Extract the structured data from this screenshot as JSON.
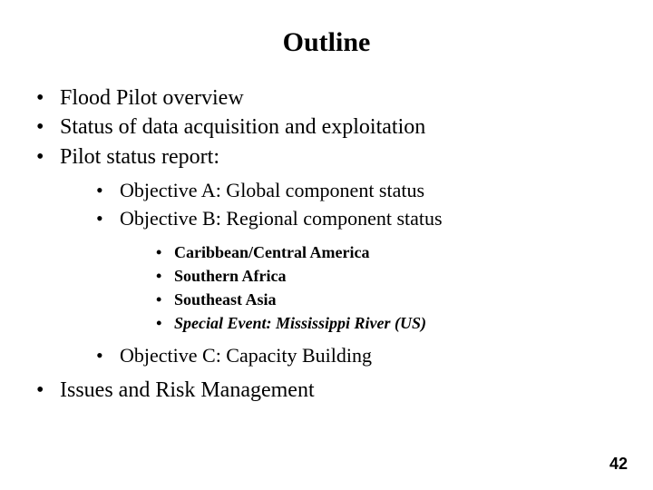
{
  "title": "Outline",
  "items": {
    "l1_0": "Flood Pilot overview",
    "l1_1": "Status of data acquisition and exploitation",
    "l1_2": "Pilot status report:",
    "l2_0": "Objective A: Global component status",
    "l2_1": "Objective B: Regional component status",
    "l3_0": "Caribbean/Central America",
    "l3_1": "Southern Africa",
    "l3_2": "Southeast Asia",
    "l3_3": "Special Event: Mississippi River (US)",
    "l2_2": "Objective C: Capacity Building",
    "l1_3": "Issues and Risk Management"
  },
  "pageNumber": "42",
  "colors": {
    "background": "#ffffff",
    "text": "#000000"
  },
  "typography": {
    "fontFamily": "Times New Roman",
    "titleSize": 30,
    "level1Size": 24,
    "level2Size": 22,
    "level3Size": 18
  }
}
